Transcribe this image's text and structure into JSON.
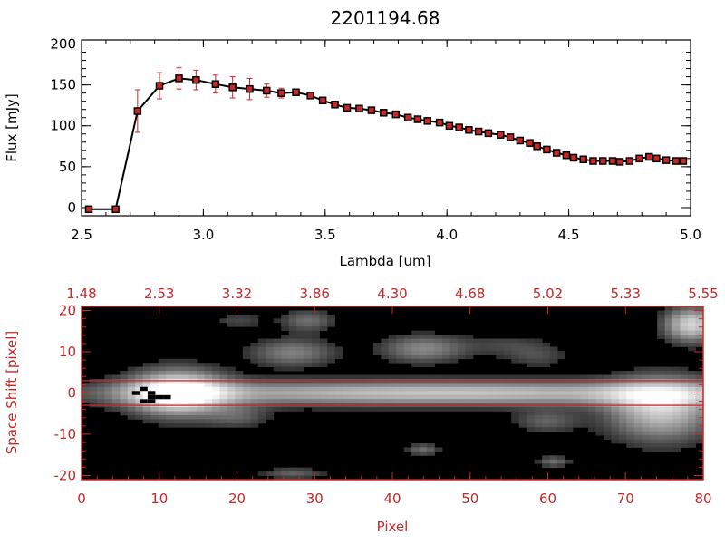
{
  "title": "2201194.68",
  "colors": {
    "axis": "#000000",
    "error": "#c62828",
    "marker": "#000000",
    "marker_fill": "#c62828",
    "panel_axis": "#c62828"
  },
  "chart_data": [
    {
      "type": "line",
      "title": "2201194.68",
      "xlabel": "Lambda [um]",
      "ylabel": "Flux [mJy]",
      "xlim": [
        2.5,
        5.0
      ],
      "ylim": [
        -10,
        205
      ],
      "x_ticks": [
        "2.5",
        "3.0",
        "3.5",
        "4.0",
        "4.5",
        "5.0"
      ],
      "y_ticks": [
        "0",
        "50",
        "100",
        "150",
        "200"
      ],
      "grid": false,
      "series": [
        {
          "x": [
            2.53,
            2.64,
            2.73,
            2.82,
            2.9,
            2.97,
            3.05,
            3.12,
            3.19,
            3.26,
            3.32,
            3.38,
            3.44,
            3.49,
            3.54,
            3.59,
            3.64,
            3.69,
            3.74,
            3.79,
            3.84,
            3.88,
            3.92,
            3.97,
            4.01,
            4.05,
            4.09,
            4.13,
            4.17,
            4.22,
            4.26,
            4.3,
            4.34,
            4.37,
            4.41,
            4.45,
            4.49,
            4.52,
            4.56,
            4.6,
            4.64,
            4.68,
            4.71,
            4.75,
            4.79,
            4.83,
            4.86,
            4.9,
            4.94,
            4.97
          ],
          "y": [
            -2,
            -2,
            118,
            149,
            158,
            156,
            151,
            147,
            145,
            143,
            140,
            141,
            137,
            131,
            126,
            122,
            121,
            119,
            116,
            114,
            110,
            108,
            106,
            104,
            100,
            98,
            95,
            93,
            91,
            89,
            86,
            82,
            79,
            75,
            71,
            67,
            64,
            61,
            59,
            57,
            57,
            57,
            56,
            57,
            60,
            62,
            60,
            58,
            57,
            57
          ],
          "yerr": [
            0,
            0,
            26,
            16,
            13,
            12,
            11,
            13,
            13,
            8,
            6,
            4,
            3,
            2,
            2,
            2,
            2,
            2,
            2,
            2,
            2,
            2,
            2,
            2,
            2,
            2,
            2,
            2,
            2,
            2,
            2,
            2,
            2,
            2,
            2,
            2,
            2,
            2,
            2,
            2,
            2,
            2,
            2,
            2,
            2,
            2,
            2,
            2,
            2,
            2
          ]
        }
      ]
    },
    {
      "type": "heatmap",
      "xlabel": "Pixel",
      "ylabel": "Space Shift [pixel]",
      "xlim": [
        0,
        80
      ],
      "ylim": [
        -21,
        21
      ],
      "x_ticks": [
        "0",
        "10",
        "20",
        "30",
        "40",
        "50",
        "60",
        "70",
        "80"
      ],
      "y_ticks": [
        "-20",
        "-10",
        "0",
        "10",
        "20"
      ],
      "top_ticks": [
        "1.48",
        "2.53",
        "3.32",
        "3.86",
        "4.30",
        "4.68",
        "5.02",
        "5.33",
        "5.55"
      ],
      "extraction_aperture": [
        -3,
        3
      ],
      "colormap": "grayscale",
      "sources": [
        {
          "x": 12,
          "y": 0,
          "peak": 1.0,
          "sx": 4.5,
          "sy": 4.0
        },
        {
          "x": 47,
          "y": 0,
          "peak": 0.72,
          "sx": 32,
          "sy": 2.2
        },
        {
          "x": 75,
          "y": -4,
          "peak": 0.75,
          "sx": 5,
          "sy": 5.5
        },
        {
          "x": 79,
          "y": 17,
          "peak": 0.8,
          "sx": 2.5,
          "sy": 3
        },
        {
          "x": 27,
          "y": 10,
          "peak": 0.42,
          "sx": 4,
          "sy": 2.5
        },
        {
          "x": 29,
          "y": 18,
          "peak": 0.35,
          "sx": 2.5,
          "sy": 2
        },
        {
          "x": 44,
          "y": 11,
          "peak": 0.45,
          "sx": 4,
          "sy": 2.5
        },
        {
          "x": 55,
          "y": 12,
          "peak": 0.18,
          "sx": 4,
          "sy": 2
        },
        {
          "x": 59,
          "y": 9,
          "peak": 0.2,
          "sx": 3,
          "sy": 2
        },
        {
          "x": 60,
          "y": -7,
          "peak": 0.3,
          "sx": 3,
          "sy": 2
        },
        {
          "x": 20,
          "y": -6,
          "peak": 0.25,
          "sx": 3,
          "sy": 2
        },
        {
          "x": 44,
          "y": -14,
          "peak": 0.35,
          "sx": 1.5,
          "sy": 1
        },
        {
          "x": 61,
          "y": -17,
          "peak": 0.35,
          "sx": 1.5,
          "sy": 1
        },
        {
          "x": 27,
          "y": -20,
          "peak": 0.3,
          "sx": 3,
          "sy": 1
        },
        {
          "x": 20,
          "y": 18,
          "peak": 0.2,
          "sx": 2.5,
          "sy": 1.5
        }
      ],
      "masked_pixels": [
        [
          7,
          0
        ],
        [
          8,
          1
        ],
        [
          9,
          0
        ],
        [
          9,
          -1
        ],
        [
          8,
          -2
        ],
        [
          10,
          -1
        ],
        [
          11,
          -1
        ],
        [
          9,
          -2
        ]
      ]
    }
  ]
}
